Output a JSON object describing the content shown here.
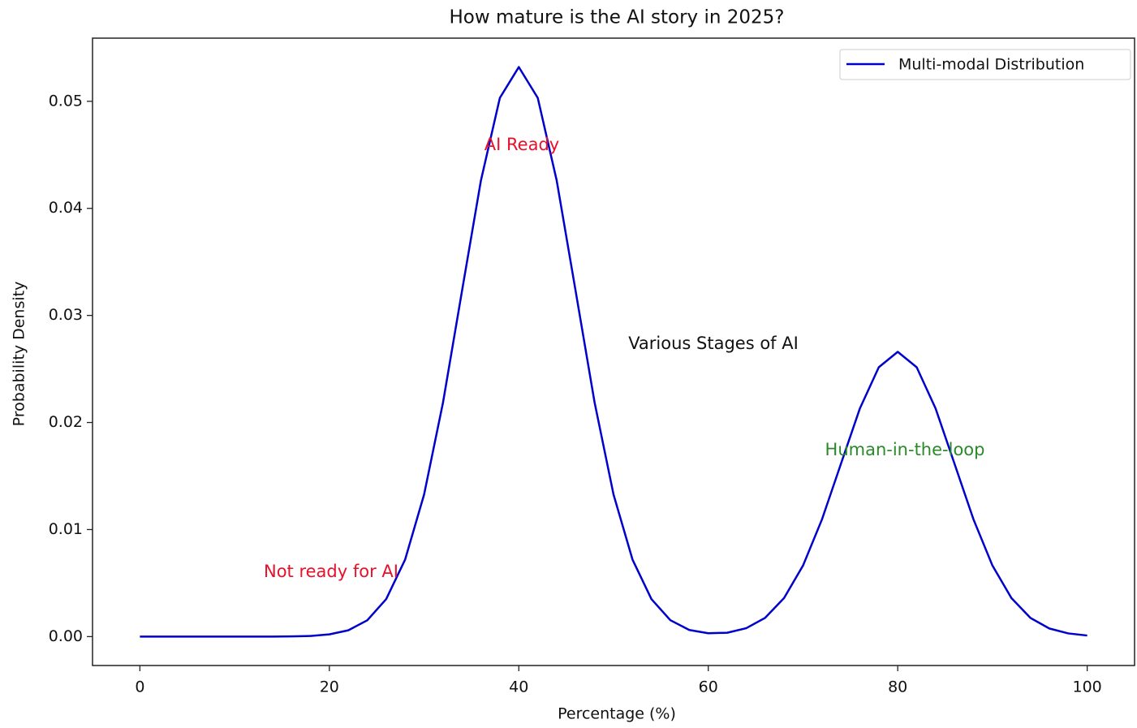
{
  "chart_data": {
    "type": "line",
    "title": "How mature is the AI story in 2025?",
    "x_label": "Percentage (%)",
    "y_label": "Probability Density",
    "x": [
      0,
      2,
      4,
      6,
      8,
      10,
      12,
      14,
      16,
      18,
      20,
      22,
      24,
      26,
      28,
      30,
      32,
      34,
      36,
      38,
      40,
      42,
      44,
      46,
      48,
      50,
      52,
      54,
      56,
      58,
      60,
      62,
      64,
      66,
      68,
      70,
      72,
      74,
      76,
      78,
      80,
      82,
      84,
      86,
      88,
      90,
      92,
      94,
      96,
      98,
      100
    ],
    "series": [
      {
        "name": "Multi-modal Distribution",
        "color": "#0000cc",
        "values": [
          0,
          0,
          0,
          0,
          0,
          0,
          0,
          0,
          2e-05,
          6e-05,
          0.00021,
          0.00059,
          0.00152,
          0.0035,
          0.0072,
          0.01327,
          0.02187,
          0.03227,
          0.0426,
          0.05032,
          0.0532,
          0.05032,
          0.0426,
          0.03227,
          0.02187,
          0.01327,
          0.0072,
          0.0035,
          0.00153,
          0.00062,
          0.00031,
          0.00036,
          0.00078,
          0.00175,
          0.0036,
          0.00663,
          0.01094,
          0.01613,
          0.0213,
          0.02516,
          0.0266,
          0.02516,
          0.0213,
          0.01613,
          0.01094,
          0.00663,
          0.0036,
          0.00175,
          0.00076,
          0.0003,
          0.0001
        ]
      }
    ],
    "xlim": [
      -5,
      105
    ],
    "ylim": [
      -0.0027,
      0.0559
    ],
    "xticks": [
      0,
      20,
      40,
      60,
      80,
      100
    ],
    "yticks": [
      {
        "value": 0,
        "label": "0.00"
      },
      {
        "value": 0.01,
        "label": "0.01"
      },
      {
        "value": 0.02,
        "label": "0.02"
      },
      {
        "value": 0.03,
        "label": "0.03"
      },
      {
        "value": 0.04,
        "label": "0.04"
      },
      {
        "value": 0.05,
        "label": "0.05"
      }
    ],
    "legend": "upper right",
    "annotations": [
      {
        "text": "AI Ready",
        "color": "#e8102a"
      },
      {
        "text": "Not ready for AI",
        "color": "#e8102a"
      },
      {
        "text": "Various Stages of AI",
        "color": "#111111"
      },
      {
        "text": "Human-in-the-loop",
        "color": "#2a8a2a"
      }
    ]
  }
}
